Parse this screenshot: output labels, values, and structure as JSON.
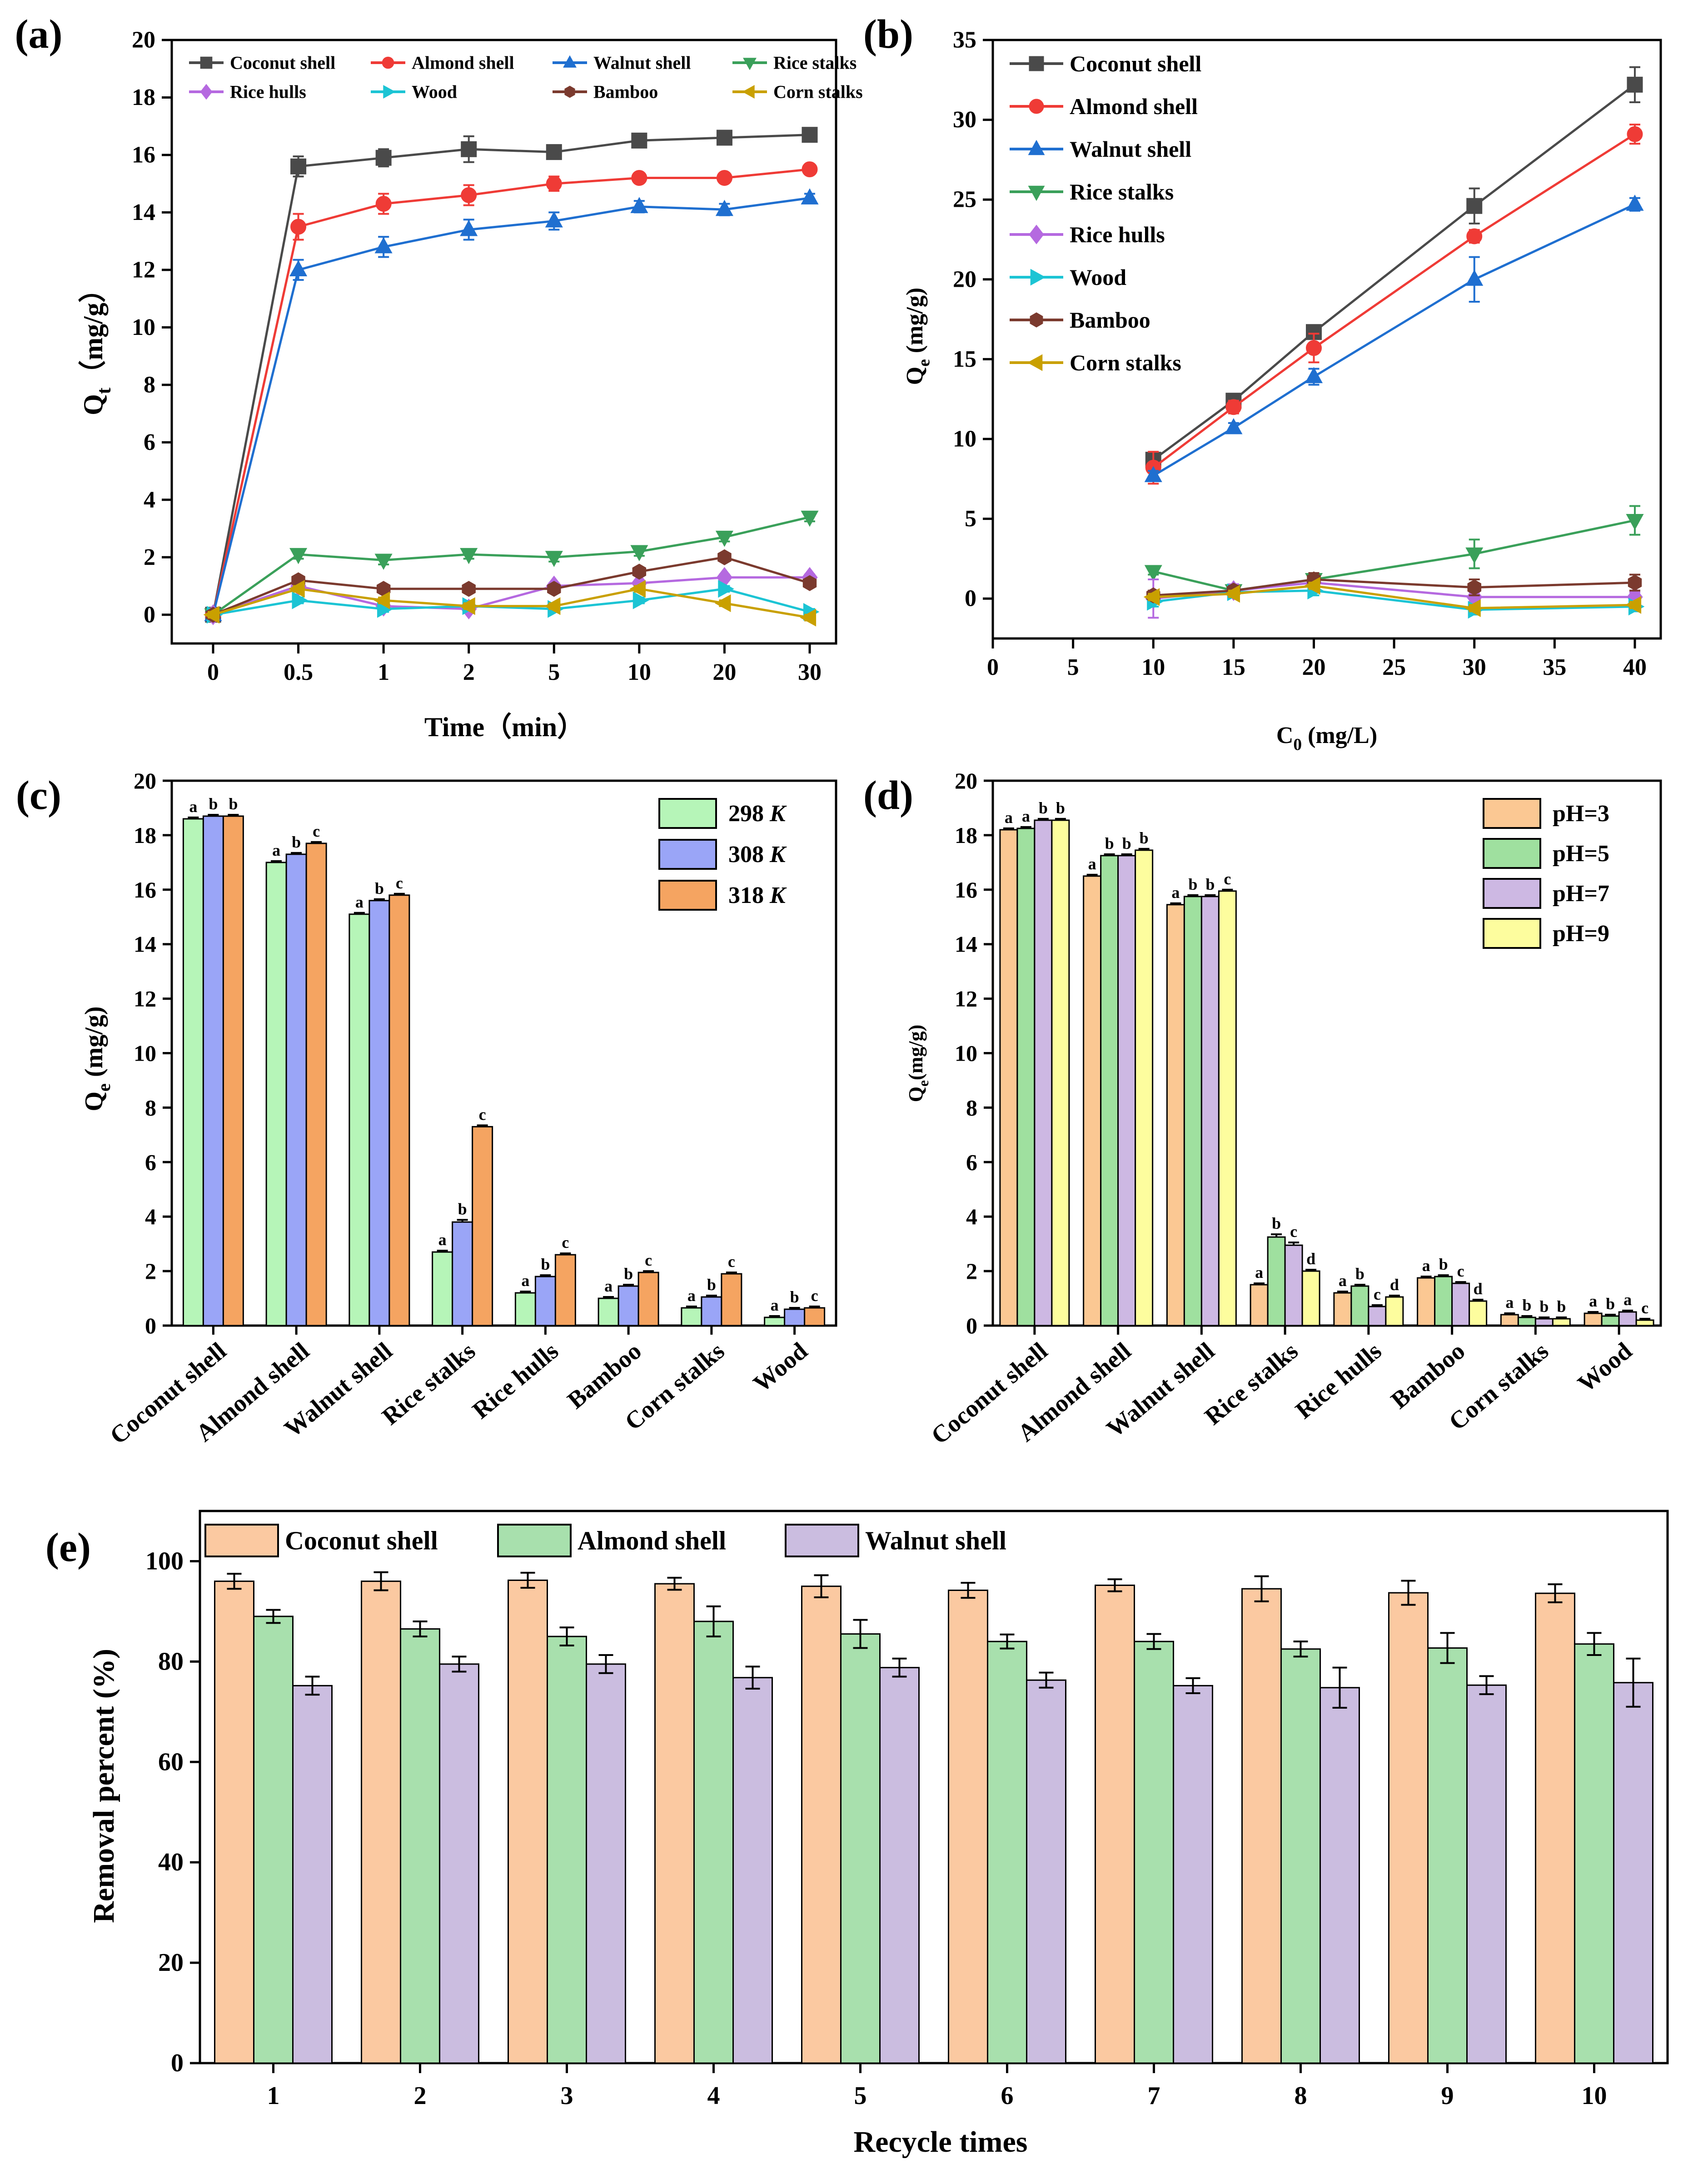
{
  "chart_data": [
    {
      "panel": "(a)",
      "type": "line",
      "xlabel": "Time（min）",
      "ylabel": "Q",
      "ylabel_sub": "t",
      "ylabel_unit": "（mg/g）",
      "categories": [
        "0",
        "0.5",
        "1",
        "2",
        "5",
        "10",
        "20",
        "30"
      ],
      "ylim": [
        -1,
        20
      ],
      "yticks": [
        0,
        2,
        4,
        6,
        8,
        10,
        12,
        14,
        16,
        18,
        20
      ],
      "series": [
        {
          "name": "Coconut shell",
          "color": "#4a4a4a",
          "marker": "square",
          "values": [
            0,
            15.6,
            15.9,
            16.2,
            16.1,
            16.5,
            16.6,
            16.7
          ],
          "errors": [
            0.1,
            0.35,
            0.3,
            0.45,
            0.15,
            0.15,
            0.15,
            0.15
          ]
        },
        {
          "name": "Almond shell",
          "color": "#ef3b36",
          "marker": "circle",
          "values": [
            0,
            13.5,
            14.3,
            14.6,
            15.0,
            15.2,
            15.2,
            15.5
          ],
          "errors": [
            0.1,
            0.45,
            0.35,
            0.35,
            0.25,
            0.15,
            0.15,
            0.15
          ]
        },
        {
          "name": "Walnut shell",
          "color": "#1f6fd0",
          "marker": "triangle-up",
          "values": [
            0,
            12.0,
            12.8,
            13.4,
            13.7,
            14.2,
            14.1,
            14.5
          ],
          "errors": [
            0.1,
            0.35,
            0.35,
            0.35,
            0.3,
            0.2,
            0.2,
            0.15
          ]
        },
        {
          "name": "Rice stalks",
          "color": "#3aa05a",
          "marker": "triangle-down",
          "values": [
            0,
            2.1,
            1.9,
            2.1,
            2.0,
            2.2,
            2.7,
            3.4
          ],
          "errors": [
            0.1,
            0.15,
            0.15,
            0.15,
            0.15,
            0.15,
            0.15,
            0.15
          ]
        },
        {
          "name": "Rice hulls",
          "color": "#b569e0",
          "marker": "diamond",
          "values": [
            0,
            1.0,
            0.3,
            0.2,
            1.0,
            1.1,
            1.3,
            1.3
          ],
          "errors": [
            0.1,
            0.1,
            0.1,
            0.1,
            0.1,
            0.1,
            0.1,
            0.1
          ]
        },
        {
          "name": "Wood",
          "color": "#1cc4d4",
          "marker": "triangle-right",
          "values": [
            0,
            0.5,
            0.2,
            0.3,
            0.2,
            0.5,
            0.9,
            0.1
          ],
          "errors": [
            0.1,
            0.1,
            0.1,
            0.1,
            0.1,
            0.1,
            0.1,
            0.1
          ]
        },
        {
          "name": "Bamboo",
          "color": "#7b3a2e",
          "marker": "hexagon",
          "values": [
            0,
            1.2,
            0.9,
            0.9,
            0.9,
            1.5,
            2.0,
            1.1
          ],
          "errors": [
            0.1,
            0.1,
            0.1,
            0.1,
            0.1,
            0.1,
            0.1,
            0.1
          ]
        },
        {
          "name": "Corn stalks",
          "color": "#c9a000",
          "marker": "triangle-left",
          "values": [
            0,
            0.9,
            0.5,
            0.3,
            0.3,
            0.9,
            0.4,
            -0.1
          ],
          "errors": [
            0.1,
            0.1,
            0.1,
            0.1,
            0.1,
            0.1,
            0.1,
            0.1
          ]
        }
      ]
    },
    {
      "panel": "(b)",
      "type": "line",
      "xlabel": "C",
      "xlabel_sub": "0",
      "xlabel_unit": " (mg/L)",
      "ylabel": "Q",
      "ylabel_sub": "e",
      "ylabel_unit": " (mg/g)",
      "x": [
        10,
        15,
        20,
        30,
        40
      ],
      "xlim": [
        0,
        42
      ],
      "xticks": [
        0,
        5,
        10,
        15,
        20,
        25,
        30,
        35,
        40
      ],
      "ylim": [
        -2.5,
        35
      ],
      "yticks": [
        0,
        5,
        10,
        15,
        20,
        25,
        30,
        35
      ],
      "series": [
        {
          "name": "Coconut shell",
          "color": "#4a4a4a",
          "marker": "square",
          "values": [
            8.7,
            12.4,
            16.7,
            24.6,
            32.2
          ],
          "errors": [
            0.4,
            0.3,
            0.4,
            1.1,
            1.1
          ]
        },
        {
          "name": "Almond shell",
          "color": "#ef3b36",
          "marker": "circle",
          "values": [
            8.2,
            12.0,
            15.7,
            22.7,
            29.1
          ],
          "errors": [
            1.0,
            0.4,
            0.9,
            0.4,
            0.6
          ]
        },
        {
          "name": "Walnut shell",
          "color": "#1f6fd0",
          "marker": "triangle-up",
          "values": [
            7.7,
            10.7,
            13.9,
            20.0,
            24.7
          ],
          "errors": [
            0.3,
            0.3,
            0.5,
            1.4,
            0.4
          ]
        },
        {
          "name": "Rice stalks",
          "color": "#3aa05a",
          "marker": "triangle-down",
          "values": [
            1.7,
            0.5,
            1.2,
            2.8,
            4.9
          ],
          "errors": [
            0.2,
            0.2,
            0.2,
            0.9,
            0.9
          ]
        },
        {
          "name": "Rice hulls",
          "color": "#b569e0",
          "marker": "diamond",
          "values": [
            0.0,
            0.5,
            1.0,
            0.1,
            0.1
          ],
          "errors": [
            1.2,
            0.4,
            0.3,
            0.3,
            0.3
          ]
        },
        {
          "name": "Wood",
          "color": "#1cc4d4",
          "marker": "triangle-right",
          "values": [
            -0.2,
            0.4,
            0.5,
            -0.7,
            -0.5
          ],
          "errors": [
            0.3,
            0.3,
            0.3,
            0.3,
            0.3
          ]
        },
        {
          "name": "Bamboo",
          "color": "#7b3a2e",
          "marker": "hexagon",
          "values": [
            0.2,
            0.5,
            1.2,
            0.7,
            1.0
          ],
          "errors": [
            0.3,
            0.3,
            0.4,
            0.5,
            0.5
          ]
        },
        {
          "name": "Corn stalks",
          "color": "#c9a000",
          "marker": "triangle-left",
          "values": [
            0.1,
            0.3,
            0.8,
            -0.6,
            -0.4
          ],
          "errors": [
            0.2,
            0.2,
            0.2,
            0.2,
            0.2
          ]
        }
      ]
    },
    {
      "panel": "(c)",
      "type": "bar",
      "ylabel": "Q",
      "ylabel_sub": "e",
      "ylabel_unit": " (mg/g)",
      "categories": [
        "Coconut shell",
        "Almond shell",
        "Walnut shell",
        "Rice stalks",
        "Rice hulls",
        "Bamboo",
        "Corn stalks",
        "Wood"
      ],
      "ylim": [
        0,
        20
      ],
      "yticks": [
        0,
        2,
        4,
        6,
        8,
        10,
        12,
        14,
        16,
        18,
        20
      ],
      "series": [
        {
          "name": "298",
          "unit": "K",
          "color": "#b6f5b8",
          "values": [
            18.6,
            17.0,
            15.1,
            2.7,
            1.2,
            1.0,
            0.65,
            0.3
          ],
          "errors": [
            0.05,
            0.05,
            0.05,
            0.05,
            0.05,
            0.05,
            0.05,
            0.05
          ],
          "letters": [
            "a",
            "a",
            "a",
            "a",
            "a",
            "a",
            "a",
            "a"
          ]
        },
        {
          "name": "308",
          "unit": "K",
          "color": "#9aa5f7",
          "values": [
            18.7,
            17.3,
            15.6,
            3.8,
            1.8,
            1.45,
            1.05,
            0.6
          ],
          "errors": [
            0.05,
            0.05,
            0.05,
            0.08,
            0.05,
            0.05,
            0.05,
            0.05
          ],
          "letters": [
            "b",
            "b",
            "b",
            "b",
            "b",
            "b",
            "b",
            "b"
          ]
        },
        {
          "name": "318",
          "unit": "K",
          "color": "#f5a461",
          "values": [
            18.7,
            17.7,
            15.8,
            7.3,
            2.6,
            1.95,
            1.9,
            0.65
          ],
          "errors": [
            0.05,
            0.05,
            0.05,
            0.05,
            0.05,
            0.05,
            0.05,
            0.05
          ],
          "letters": [
            "b",
            "c",
            "c",
            "c",
            "c",
            "c",
            "c",
            "c"
          ]
        }
      ]
    },
    {
      "panel": "(d)",
      "type": "bar",
      "ylabel": "Q",
      "ylabel_sub": "e",
      "ylabel_unit": "(mg/g)",
      "categories": [
        "Coconut shell",
        "Almond shell",
        "Walnut shell",
        "Rice stalks",
        "Rice hulls",
        "Bamboo",
        "Corn stalks",
        "Wood"
      ],
      "ylim": [
        0,
        20
      ],
      "yticks": [
        0,
        2,
        4,
        6,
        8,
        10,
        12,
        14,
        16,
        18,
        20
      ],
      "series": [
        {
          "name": "pH=3",
          "color": "#fbc893",
          "values": [
            18.2,
            16.5,
            15.45,
            1.5,
            1.2,
            1.75,
            0.4,
            0.45
          ],
          "errors": [
            0.05,
            0.05,
            0.05,
            0.05,
            0.05,
            0.05,
            0.05,
            0.05
          ],
          "letters": [
            "a",
            "a",
            "a",
            "a",
            "a",
            "a",
            "a",
            "a"
          ]
        },
        {
          "name": "pH=5",
          "color": "#9fe09f",
          "values": [
            18.25,
            17.25,
            15.75,
            3.25,
            1.45,
            1.8,
            0.3,
            0.35
          ],
          "errors": [
            0.05,
            0.05,
            0.05,
            0.1,
            0.05,
            0.05,
            0.05,
            0.05
          ],
          "letters": [
            "a",
            "b",
            "b",
            "b",
            "b",
            "b",
            "b",
            "b"
          ]
        },
        {
          "name": "pH=7",
          "color": "#cdb8e3",
          "values": [
            18.55,
            17.25,
            15.75,
            2.95,
            0.7,
            1.55,
            0.25,
            0.5
          ],
          "errors": [
            0.05,
            0.05,
            0.05,
            0.1,
            0.05,
            0.05,
            0.05,
            0.05
          ],
          "letters": [
            "b",
            "b",
            "b",
            "c",
            "c",
            "c",
            "b",
            "a"
          ]
        },
        {
          "name": "pH=9",
          "color": "#fdfd9e",
          "values": [
            18.55,
            17.45,
            15.95,
            2.0,
            1.05,
            0.9,
            0.25,
            0.2
          ],
          "errors": [
            0.05,
            0.05,
            0.05,
            0.05,
            0.05,
            0.05,
            0.05,
            0.05
          ],
          "letters": [
            "b",
            "b",
            "c",
            "d",
            "d",
            "d",
            "b",
            "c"
          ]
        }
      ]
    },
    {
      "panel": "(e)",
      "type": "bar",
      "xlabel": "Recycle times",
      "ylabel": "Removal percent (%)",
      "categories": [
        "1",
        "2",
        "3",
        "4",
        "5",
        "6",
        "7",
        "8",
        "9",
        "10"
      ],
      "ylim": [
        0,
        110
      ],
      "yticks": [
        0,
        20,
        40,
        60,
        80,
        100
      ],
      "series": [
        {
          "name": "Coconut shell",
          "color": "#fbc9a1",
          "values": [
            96.0,
            96.0,
            96.2,
            95.5,
            95.0,
            94.2,
            95.2,
            94.5,
            93.7,
            93.6
          ],
          "errors": [
            1.5,
            1.8,
            1.5,
            1.2,
            2.2,
            1.5,
            1.2,
            2.5,
            2.4,
            1.8
          ]
        },
        {
          "name": "Almond shell",
          "color": "#a8e0ad",
          "values": [
            89.0,
            86.5,
            85.0,
            88.0,
            85.5,
            84.0,
            84.0,
            82.5,
            82.7,
            83.5
          ],
          "errors": [
            1.3,
            1.5,
            1.8,
            3.0,
            2.8,
            1.4,
            1.5,
            1.5,
            3.0,
            2.2
          ]
        },
        {
          "name": "Walnut shell",
          "color": "#cbbde0",
          "values": [
            75.2,
            79.5,
            79.5,
            76.8,
            78.8,
            76.3,
            75.2,
            74.8,
            75.3,
            75.8
          ],
          "errors": [
            1.8,
            1.5,
            1.8,
            2.2,
            1.8,
            1.5,
            1.5,
            4.0,
            1.8,
            4.8
          ]
        }
      ]
    }
  ]
}
